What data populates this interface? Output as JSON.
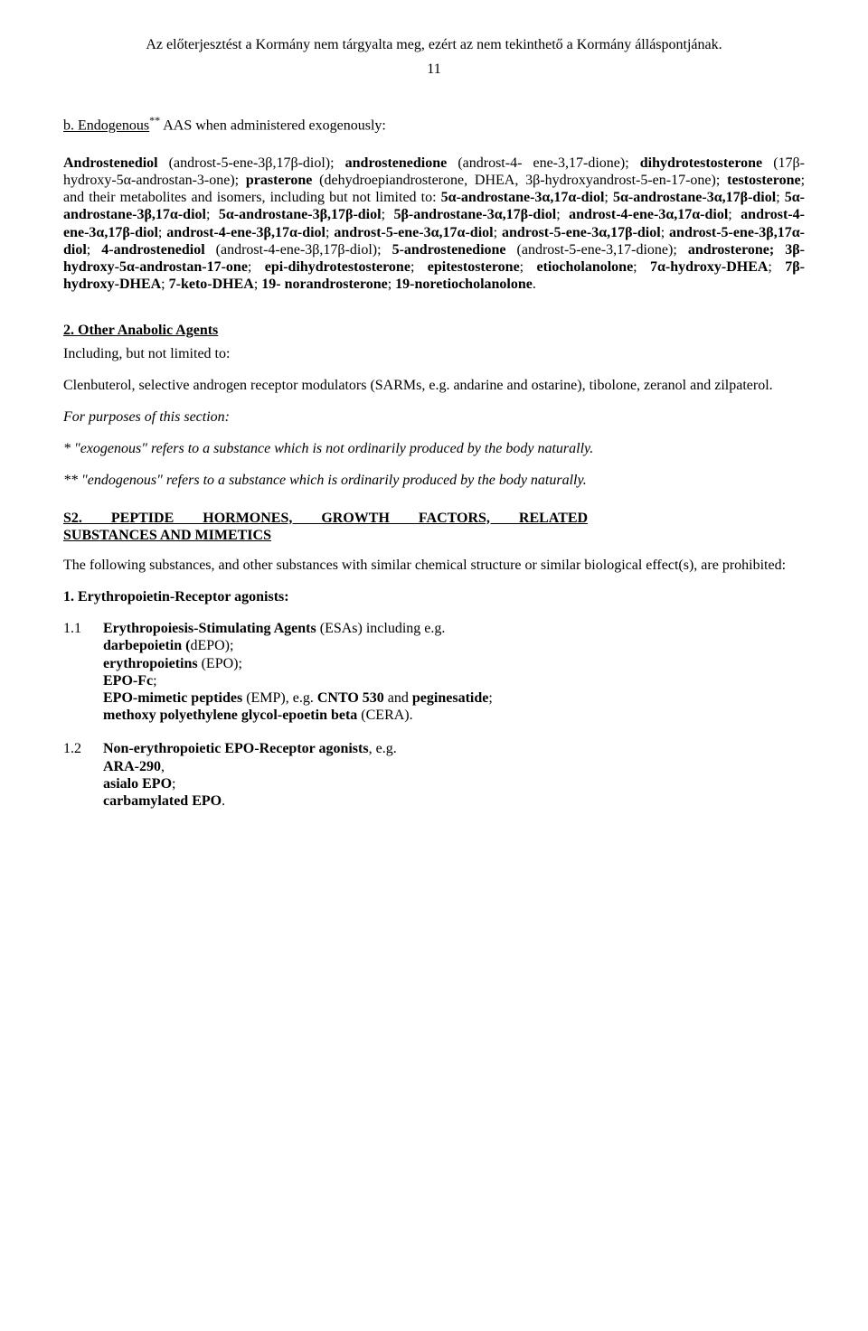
{
  "header_note": "Az előterjesztést a Kormány nem tárgyalta meg, ezért az nem tekinthető a Kormány álláspontjának.",
  "page_number": "11",
  "section_b": {
    "lead": "b. Endogenous",
    "sup": "**",
    "tail": " AAS when administered exogenously:"
  },
  "para1_html": "<span class=\"bold\">Androstenediol</span> (androst-5-ene-3β,17β-diol); <span class=\"bold\">androstenedione</span> (androst-4- ene-3,17-dione); <span class=\"bold\">dihydrotestosterone</span> (17β-hydroxy-5α-androstan-3-one); <span class=\"bold\">prasterone</span> (dehydroepiandrosterone, DHEA, 3β-hydroxyandrost-5-en-17-one); <span class=\"bold\">testosterone</span>; and their metabolites and isomers, including but not limited to: <span class=\"bold\">5α-androstane-3α,17α-diol</span>; <span class=\"bold\">5α-androstane-3α,17β-diol</span>; <span class=\"bold\">5α-androstane-3β,17α-diol</span>; <span class=\"bold\">5α-androstane-3β,17β-diol</span>; <span class=\"bold\">5β-androstane-3α,17β-diol</span>; <span class=\"bold\">androst-4-ene-3α,17α-diol</span>; <span class=\"bold\">androst-4-ene-3α,17β-diol</span>; <span class=\"bold\">androst-4-ene-3β,17α-diol</span>; <span class=\"bold\">androst-5-ene-3α,17α-diol</span>; <span class=\"bold\">androst-5-ene-3α,17β-diol</span>; <span class=\"bold\">androst-5-ene-3β,17α-diol</span>; <span class=\"bold\">4-androstenediol</span> (androst-4-ene-3β,17β-diol); <span class=\"bold\">5-androstenedione</span> (androst-5-ene-3,17-dione); <span class=\"bold\">androsterone; 3β-hydroxy-5α-androstan-17-one</span>; <span class=\"bold\">epi-dihydrotestosterone</span>; <span class=\"bold\">epitestosterone</span>; <span class=\"bold\">etiocholanolone</span>; <span class=\"bold\">7α-hydroxy-DHEA</span>; <span class=\"bold\">7β-hydroxy-DHEA</span>; <span class=\"bold\">7-keto-DHEA</span>; <span class=\"bold\">19- norandrosterone</span>; <span class=\"bold\">19-noretiocholanolone</span>.",
  "other_anabolic_heading": "2.  Other Anabolic Agents",
  "including_line": "Including, but not limited to:",
  "clen_para": "Clenbuterol, selective androgen receptor modulators (SARMs, e.g. andarine and ostarine), tibolone, zeranol and zilpaterol.",
  "purposes_line": "For purposes of this section:",
  "foot1": "* \"exogenous\" refers to a substance which is not ordinarily produced by the body naturally.",
  "foot2": "** \"endogenous\" refers to a substance which is ordinarily produced by the body naturally.",
  "s2_line1": "S2.   PEPTIDE   HORMONES,   GROWTH   FACTORS,   RELATED",
  "s2_line2": "SUBSTANCES AND MIMETICS",
  "s2_intro": "The following substances, and other substances with similar chemical structure or similar biological effect(s), are prohibited:",
  "list_main_title": "1.  Erythropoietin-Receptor agonists:",
  "item11": {
    "num": "1.1",
    "line1_html": "<span class=\"bold\">Erythropoiesis-Stimulating Agents</span> (ESAs) including e.g.",
    "lines_html": [
      "<span class=\"bold\">darbepoietin (</span>dEPO);",
      "<span class=\"bold\">erythropoietins</span> (EPO);",
      "<span class=\"bold\">EPO-Fc</span>;",
      "<span class=\"bold\">EPO-mimetic peptides</span> (EMP), e.g. <span class=\"bold\">CNTO 530</span> and <span class=\"bold\">peginesatide</span>;",
      "<span class=\"bold\">methoxy polyethylene glycol-epoetin beta</span> (CERA)."
    ]
  },
  "item12": {
    "num": "1.2",
    "line1_html": "<span class=\"bold\">Non-erythropoietic  EPO-Receptor  agonists</span>,  e.g.",
    "lines_html": [
      "<span class=\"bold\">ARA-290</span>,",
      "<span class=\"bold\">asialo EPO</span>;",
      "<span class=\"bold\">carbamylated EPO</span>."
    ]
  }
}
